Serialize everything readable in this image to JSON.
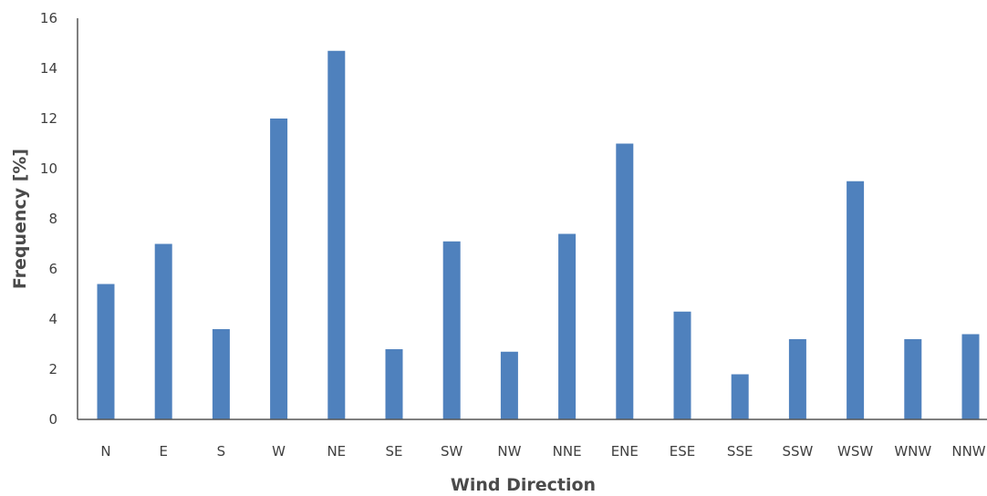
{
  "chart_data": {
    "type": "bar",
    "categories": [
      "N",
      "E",
      "S",
      "W",
      "NE",
      "SE",
      "SW",
      "NW",
      "NNE",
      "ENE",
      "ESE",
      "SSE",
      "SSW",
      "WSW",
      "WNW",
      "NNW"
    ],
    "values": [
      5.4,
      7.0,
      3.6,
      12.0,
      14.7,
      2.8,
      7.1,
      2.7,
      7.4,
      11.0,
      4.3,
      1.8,
      3.2,
      9.5,
      3.2,
      3.4
    ],
    "title": "",
    "xlabel": "Wind Direction",
    "ylabel": "Frequency [%]",
    "ylim": [
      0,
      16
    ],
    "yticks": [
      0,
      2,
      4,
      6,
      8,
      10,
      12,
      14,
      16
    ],
    "grid": false,
    "legend": "none",
    "colors": {
      "bar": "#4f81bd",
      "axis": "#555555",
      "text": "#3f3f3f"
    }
  }
}
